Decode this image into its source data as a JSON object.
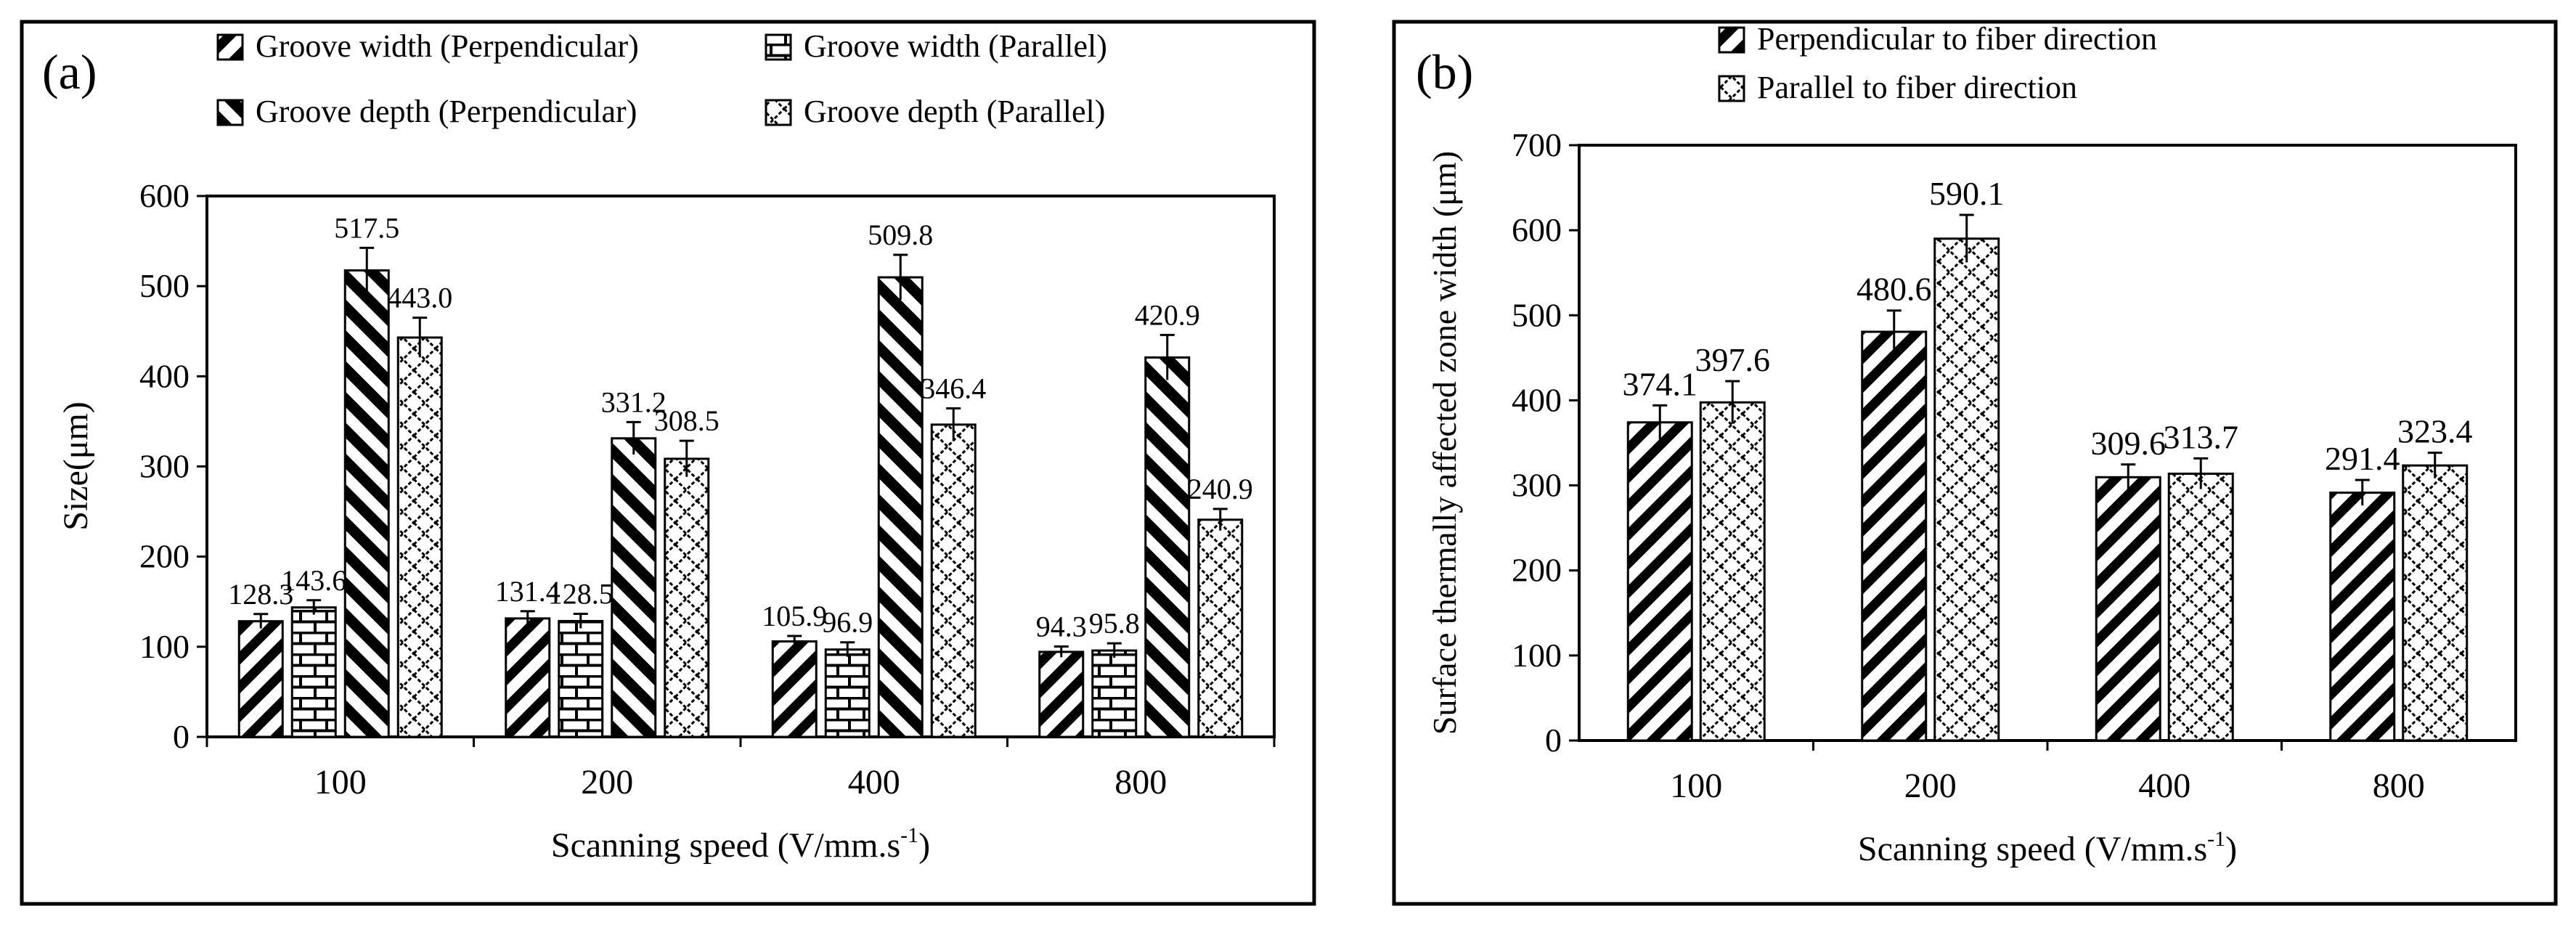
{
  "chart_data": [
    {
      "type": "bar",
      "panel_label": "(a)",
      "title": "",
      "xlabel": "Scanning speed (V/mm.s",
      "xlabel_sup": "-1",
      "xlabel_tail": ")",
      "ylabel": "Size(μm)",
      "ylim": [
        0,
        600
      ],
      "yticks": [
        "0",
        "100",
        "200",
        "300",
        "400",
        "500",
        "600"
      ],
      "categories": [
        "100",
        "200",
        "400",
        "800"
      ],
      "legend_position": "top",
      "series": [
        {
          "name": "Groove width (Perpendicular)",
          "pattern": "diag",
          "values": [
            128.3,
            131.4,
            105.9,
            94.3
          ],
          "labels": [
            "128.3",
            "131.4",
            "105.9",
            "94.3"
          ],
          "errors": [
            8,
            8,
            6,
            6
          ]
        },
        {
          "name": "Groove width (Parallel)",
          "pattern": "brick",
          "values": [
            143.6,
            128.5,
            96.9,
            95.8
          ],
          "labels": [
            "143.6",
            "128.5",
            "96.9",
            "95.8"
          ],
          "errors": [
            8,
            8,
            8,
            8
          ]
        },
        {
          "name": "Groove depth (Perpendicular)",
          "pattern": "diagThick",
          "values": [
            517.5,
            331.2,
            509.8,
            420.9
          ],
          "labels": [
            "517.5",
            "331.2",
            "509.8",
            "420.9"
          ],
          "errors": [
            25,
            18,
            25,
            25
          ]
        },
        {
          "name": "Groove depth (Parallel)",
          "pattern": "zigzag",
          "values": [
            443.0,
            308.5,
            346.4,
            240.9
          ],
          "labels": [
            "443.0",
            "308.5",
            "346.4",
            "240.9"
          ],
          "errors": [
            22,
            20,
            18,
            12
          ]
        }
      ]
    },
    {
      "type": "bar",
      "panel_label": "(b)",
      "title": "",
      "xlabel": "Scanning speed (V/mm.s",
      "xlabel_sup": "-1",
      "xlabel_tail": ")",
      "ylabel": "Surface thermally affected zone width (μm)",
      "ylim": [
        0,
        700
      ],
      "yticks": [
        "0",
        "100",
        "200",
        "300",
        "400",
        "500",
        "600",
        "700"
      ],
      "categories": [
        "100",
        "200",
        "400",
        "800"
      ],
      "legend_position": "top",
      "series": [
        {
          "name": "Perpendicular to fiber direction",
          "pattern": "diag",
          "values": [
            374.1,
            480.6,
            309.6,
            291.4
          ],
          "labels": [
            "374.1",
            "480.6",
            "309.6",
            "291.4"
          ],
          "errors": [
            20,
            25,
            15,
            15
          ]
        },
        {
          "name": "Parallel to fiber direction",
          "pattern": "zigzag",
          "values": [
            397.6,
            590.1,
            313.7,
            323.4
          ],
          "labels": [
            "397.6",
            "590.1",
            "313.7",
            "323.4"
          ],
          "errors": [
            25,
            28,
            18,
            15
          ]
        }
      ]
    }
  ]
}
